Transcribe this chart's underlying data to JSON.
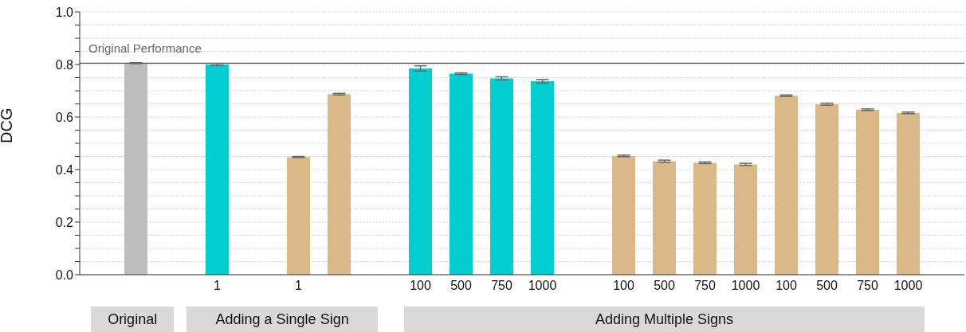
{
  "chart_data": {
    "type": "bar",
    "ylabel": "DCG",
    "categories": [
      null,
      null,
      "1",
      null,
      "1",
      null,
      null,
      "100",
      "500",
      "750",
      "1000",
      null,
      "100",
      "500",
      "750",
      "1000",
      "100",
      "500",
      "750",
      "1000"
    ],
    "series": [
      {
        "color": "#bdbdbd",
        "values": [
          0.805,
          null,
          null,
          null,
          null,
          null,
          null,
          null,
          null,
          null,
          null,
          null,
          null,
          null,
          null,
          null,
          null,
          null,
          null,
          null
        ],
        "errors": [
          0.002,
          null,
          null,
          null,
          null,
          null,
          null,
          null,
          null,
          null,
          null,
          null,
          null,
          null,
          null,
          null,
          null,
          null,
          null,
          null
        ]
      },
      {
        "color": "#00ced1",
        "values": [
          null,
          null,
          0.8,
          null,
          null,
          null,
          null,
          0.785,
          0.765,
          0.747,
          0.736,
          null,
          null,
          null,
          null,
          null,
          null,
          null,
          null,
          null
        ],
        "errors": [
          null,
          null,
          0.004,
          null,
          null,
          null,
          null,
          0.01,
          0.003,
          0.006,
          0.007,
          null,
          null,
          null,
          null,
          null,
          null,
          null,
          null,
          null
        ]
      },
      {
        "color": "#dbb887",
        "values": [
          null,
          null,
          null,
          null,
          0.448,
          null,
          null,
          null,
          null,
          null,
          null,
          null,
          0.452,
          0.432,
          0.426,
          0.42,
          null,
          null,
          null,
          null
        ],
        "errors": [
          null,
          null,
          null,
          null,
          0.002,
          null,
          null,
          null,
          null,
          null,
          null,
          null,
          0.003,
          0.004,
          0.003,
          0.004,
          null,
          null,
          null,
          null
        ]
      },
      {
        "color": "#dbb887",
        "values": [
          null,
          null,
          null,
          null,
          null,
          0.687,
          null,
          null,
          null,
          null,
          null,
          null,
          null,
          null,
          null,
          null,
          0.681,
          0.649,
          0.628,
          0.616
        ],
        "errors": [
          null,
          null,
          null,
          null,
          null,
          0.003,
          null,
          null,
          null,
          null,
          null,
          null,
          null,
          null,
          null,
          null,
          0.003,
          0.004,
          0.003,
          0.003
        ]
      }
    ],
    "ylim": [
      0,
      1.0
    ],
    "yticks": [
      {
        "value": 0,
        "label": "0.0"
      },
      {
        "value": 0.05,
        "label": null
      },
      {
        "value": 0.1,
        "label": null
      },
      {
        "value": 0.15,
        "label": null
      },
      0.2,
      {
        "value": 0.25,
        "label": null
      },
      {
        "value": 0.3,
        "label": null
      },
      {
        "value": 0.35,
        "label": null
      },
      0.4,
      {
        "value": 0.45,
        "label": null
      },
      {
        "value": 0.5,
        "label": null
      },
      {
        "value": 0.55,
        "label": null
      },
      0.6,
      {
        "value": 0.65,
        "label": null
      },
      {
        "value": 0.7,
        "label": null
      },
      {
        "value": 0.75,
        "label": null
      },
      0.8,
      {
        "value": 0.85,
        "label": null
      },
      {
        "value": 0.9,
        "label": null
      },
      {
        "value": 0.95,
        "label": null
      },
      {
        "value": 1.0,
        "label": "1.0"
      }
    ],
    "grid": "y",
    "ref_lines": [
      {
        "axis": "y",
        "value": 0.805,
        "label": "Original Performance",
        "color": "#555555"
      }
    ],
    "annotations": [
      "Original",
      "Adding a Single Sign",
      "Adding Multiple Signs"
    ]
  }
}
